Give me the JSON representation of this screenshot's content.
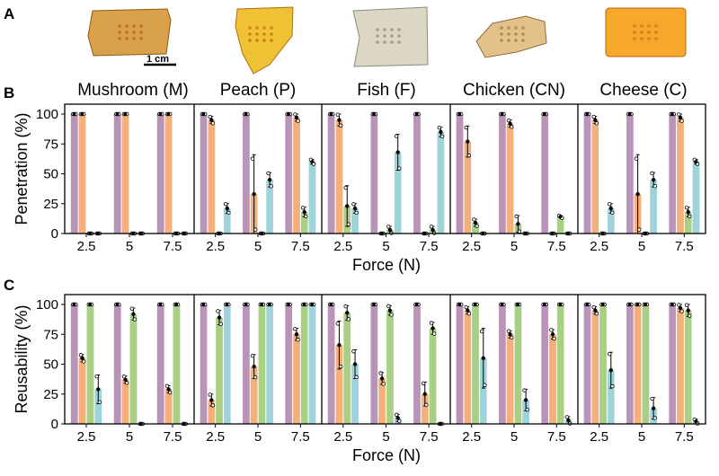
{
  "panel_labels": [
    "A",
    "B",
    "C"
  ],
  "scale_bar_label": "1 cm",
  "foods": [
    {
      "name": "Mushroom (M)",
      "photo_color": "#d9a24a",
      "photo_shade": "#b97a1f"
    },
    {
      "name": "Peach (P)",
      "photo_color": "#f0c035",
      "photo_shade": "#c98412"
    },
    {
      "name": "Fish (F)",
      "photo_color": "#dcd6c4",
      "photo_shade": "#a39d8a"
    },
    {
      "name": "Chicken (CN)",
      "photo_color": "#e2c28a",
      "photo_shade": "#b38d52"
    },
    {
      "name": "Cheese (C)",
      "photo_color": "#f5a82a",
      "photo_shade": "#d9811a"
    }
  ],
  "series_colors": [
    "#b993b8",
    "#f3b07a",
    "#a9cf85",
    "#9fd3da"
  ],
  "chart_data": [
    {
      "id": "B",
      "type": "bar",
      "ylabel": "Penetration (%)",
      "xlabel": "Force (N)",
      "yticks": [
        0,
        25,
        50,
        75,
        100
      ],
      "ylim": [
        0,
        100
      ],
      "categories": [
        "2.5",
        "5",
        "7.5"
      ],
      "groups": [
        {
          "food": "Mushroom (M)",
          "values": [
            [
              100,
              100,
              0,
              0
            ],
            [
              100,
              100,
              0,
              0
            ],
            [
              100,
              100,
              0,
              0
            ]
          ],
          "errors": [
            [
              0,
              0,
              0,
              0
            ],
            [
              0,
              0,
              0,
              0
            ],
            [
              0,
              0,
              0,
              0
            ]
          ]
        },
        {
          "food": "Peach (P)",
          "values": [
            [
              100,
              95,
              0,
              21
            ],
            [
              100,
              33,
              0,
              45
            ],
            [
              100,
              97,
              18,
              60
            ]
          ],
          "errors": [
            [
              0,
              3,
              0,
              4
            ],
            [
              0,
              33,
              0,
              6
            ],
            [
              0,
              3,
              4,
              2
            ]
          ]
        },
        {
          "food": "Fish (F)",
          "values": [
            [
              100,
              95,
              23,
              21
            ],
            [
              100,
              0,
              3,
              68
            ],
            [
              100,
              0,
              3,
              85
            ]
          ],
          "errors": [
            [
              0,
              5,
              17,
              4
            ],
            [
              0,
              0,
              3,
              15
            ],
            [
              0,
              0,
              3,
              4
            ]
          ]
        },
        {
          "food": "Chicken (CN)",
          "values": [
            [
              100,
              77,
              9,
              0
            ],
            [
              100,
              92,
              8,
              0
            ],
            [
              100,
              0,
              14,
              0
            ]
          ],
          "errors": [
            [
              0,
              13,
              3,
              0
            ],
            [
              0,
              3,
              7,
              0
            ],
            [
              0,
              0,
              1,
              0
            ]
          ]
        },
        {
          "food": "Cheese (C)",
          "values": [
            [
              100,
              95,
              0,
              21
            ],
            [
              100,
              33,
              0,
              45
            ],
            [
              100,
              97,
              18,
              60
            ]
          ],
          "errors": [
            [
              0,
              3,
              0,
              4
            ],
            [
              0,
              33,
              0,
              6
            ],
            [
              0,
              3,
              4,
              2
            ]
          ]
        }
      ]
    },
    {
      "id": "C",
      "type": "bar",
      "ylabel": "Reusability (%)",
      "xlabel": "Force (N)",
      "yticks": [
        0,
        25,
        50,
        75,
        100
      ],
      "ylim": [
        0,
        100
      ],
      "categories": [
        "2.5",
        "5",
        "7.5"
      ],
      "groups": [
        {
          "food": "Mushroom (M)",
          "values": [
            [
              100,
              55,
              100,
              29
            ],
            [
              100,
              37,
              92,
              0
            ],
            [
              100,
              29,
              100,
              0
            ]
          ],
          "errors": [
            [
              0,
              3,
              0,
              12
            ],
            [
              0,
              3,
              5,
              0
            ],
            [
              0,
              3,
              0,
              0
            ]
          ]
        },
        {
          "food": "Peach (P)",
          "values": [
            [
              100,
              20,
              89,
              100
            ],
            [
              100,
              48,
              100,
              100
            ],
            [
              100,
              75,
              100,
              100
            ]
          ],
          "errors": [
            [
              0,
              5,
              6,
              0
            ],
            [
              0,
              10,
              0,
              0
            ],
            [
              0,
              5,
              0,
              0
            ]
          ]
        },
        {
          "food": "Fish (F)",
          "values": [
            [
              100,
              66,
              93,
              50
            ],
            [
              100,
              38,
              95,
              5
            ],
            [
              100,
              25,
              80,
              0
            ]
          ],
          "errors": [
            [
              0,
              20,
              6,
              12
            ],
            [
              0,
              5,
              4,
              3
            ],
            [
              0,
              10,
              5,
              0
            ]
          ]
        },
        {
          "food": "Chicken (CN)",
          "values": [
            [
              100,
              95,
              100,
              55
            ],
            [
              100,
              75,
              100,
              20
            ],
            [
              100,
              75,
              100,
              3
            ]
          ],
          "errors": [
            [
              0,
              3,
              0,
              25
            ],
            [
              0,
              3,
              0,
              9
            ],
            [
              0,
              4,
              0,
              3
            ]
          ]
        },
        {
          "food": "Cheese (C)",
          "values": [
            [
              100,
              95,
              100,
              45
            ],
            [
              100,
              100,
              100,
              13
            ],
            [
              100,
              97,
              95,
              2
            ]
          ],
          "errors": [
            [
              0,
              3,
              0,
              15
            ],
            [
              0,
              0,
              0,
              9
            ],
            [
              0,
              3,
              5,
              2
            ]
          ]
        }
      ]
    }
  ]
}
